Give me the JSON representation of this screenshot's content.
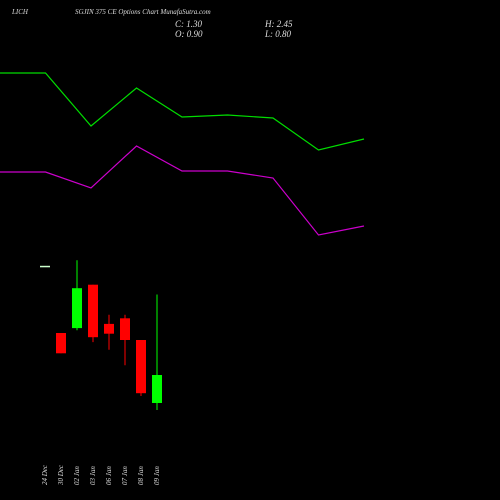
{
  "chart_data": [
    {
      "type": "candlestick",
      "title": "LICH",
      "subtitle": "SGJIN 375 CE Options Chart MunafaSutra.com",
      "header": {
        "close": "C: 1.30",
        "open": "O: 0.90",
        "high": "H: 2.45",
        "low": "L: 0.80"
      },
      "categories": [
        "24 Dec",
        "30 Dec",
        "02 Jan",
        "03 Jan",
        "06 Jan",
        "07 Jan",
        "08 Jan",
        "09 Jan"
      ],
      "open": [
        2.86,
        1.9,
        1.97,
        2.59,
        2.03,
        2.11,
        1.8,
        0.9
      ],
      "high": [
        2.86,
        1.9,
        2.94,
        2.59,
        2.16,
        2.16,
        1.8,
        2.45
      ],
      "low": [
        2.86,
        1.61,
        1.94,
        1.77,
        1.66,
        1.44,
        1.0,
        0.8
      ],
      "close": [
        2.86,
        1.61,
        2.54,
        1.84,
        1.89,
        1.8,
        1.04,
        1.3
      ],
      "up_color": "#00ff00",
      "down_color": "#ff0000",
      "flat_color": "#ccffcc",
      "ylim": [
        0.6,
        3.1
      ]
    },
    {
      "type": "line",
      "categories": [
        null,
        null,
        null,
        null,
        null,
        null,
        null,
        null,
        null
      ],
      "series": [
        {
          "color": "#00dd00",
          "values": [
            177,
            177,
            124,
            162,
            133,
            135,
            132,
            100,
            111
          ]
        },
        {
          "color": "#cc00cc",
          "values": [
            78,
            78,
            62,
            104,
            79,
            79,
            72,
            15,
            24
          ]
        }
      ],
      "ylim": [
        0,
        250
      ]
    }
  ]
}
